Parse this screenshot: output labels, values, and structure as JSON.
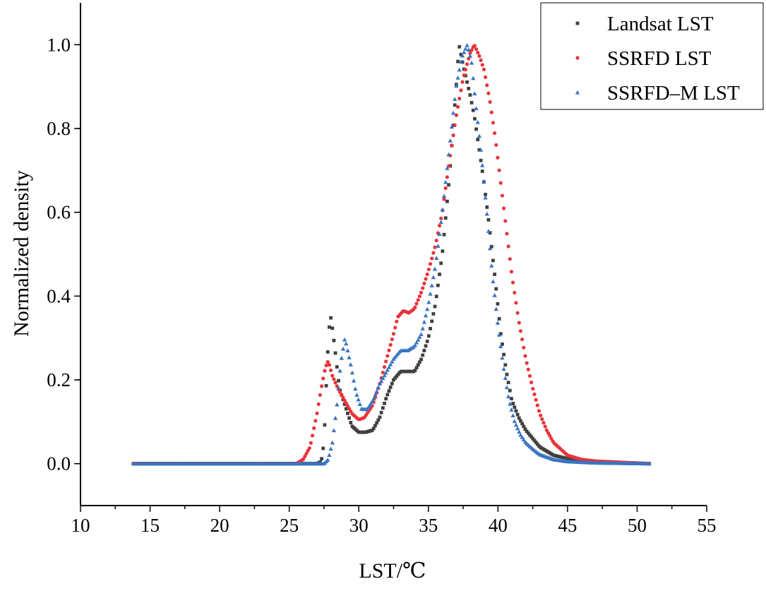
{
  "colors": {
    "landsat": "#404040",
    "ssrfd": "#e8333a",
    "ssrfd_m": "#3a74c2",
    "axis": "#000000",
    "background": "#ffffff"
  },
  "chart_data": {
    "type": "scatter",
    "title": "",
    "xlabel": "LST/℃",
    "ylabel": "Normalized density",
    "xlim": [
      10,
      55
    ],
    "ylim": [
      -0.1,
      1.1
    ],
    "x_ticks": [
      10,
      15,
      20,
      25,
      30,
      35,
      40,
      45,
      50,
      55
    ],
    "x_tick_labels": [
      "10",
      "15",
      "20",
      "25",
      "30",
      "35",
      "40",
      "45",
      "50",
      "55"
    ],
    "y_ticks": [
      0.0,
      0.2,
      0.4,
      0.6,
      0.8,
      1.0
    ],
    "y_tick_labels": [
      "0.0",
      "0.2",
      "0.4",
      "0.6",
      "0.8",
      "1.0"
    ],
    "grid": false,
    "legend_position": "top-right",
    "x_range_of_points": [
      13.8,
      50.9
    ],
    "series": [
      {
        "name": "Landsat LST",
        "marker": "square",
        "color": "#404040",
        "points": [
          [
            13.8,
            0
          ],
          [
            27,
            0
          ],
          [
            27.3,
            0.005
          ],
          [
            27.5,
            0.05
          ],
          [
            27.7,
            0.22
          ],
          [
            27.85,
            0.32
          ],
          [
            28,
            0.35
          ],
          [
            28.3,
            0.27
          ],
          [
            28.6,
            0.18
          ],
          [
            29,
            0.14
          ],
          [
            29.5,
            0.09
          ],
          [
            30,
            0.075
          ],
          [
            30.5,
            0.075
          ],
          [
            31,
            0.08
          ],
          [
            31.5,
            0.11
          ],
          [
            32,
            0.16
          ],
          [
            32.5,
            0.2
          ],
          [
            33,
            0.22
          ],
          [
            33.5,
            0.22
          ],
          [
            34,
            0.22
          ],
          [
            34.5,
            0.25
          ],
          [
            35,
            0.3
          ],
          [
            35.5,
            0.38
          ],
          [
            36,
            0.5
          ],
          [
            36.5,
            0.68
          ],
          [
            37,
            0.9
          ],
          [
            37.2,
            1.0
          ],
          [
            37.5,
            0.95
          ],
          [
            38,
            0.88
          ],
          [
            38.3,
            0.83
          ],
          [
            38.7,
            0.74
          ],
          [
            39,
            0.67
          ],
          [
            39.4,
            0.56
          ],
          [
            39.8,
            0.44
          ],
          [
            40.2,
            0.31
          ],
          [
            40.6,
            0.22
          ],
          [
            41,
            0.15
          ],
          [
            41.5,
            0.11
          ],
          [
            42,
            0.08
          ],
          [
            42.5,
            0.06
          ],
          [
            43,
            0.04
          ],
          [
            44,
            0.02
          ],
          [
            45,
            0.012
          ],
          [
            47,
            0.005
          ],
          [
            50.9,
            0
          ]
        ]
      },
      {
        "name": "SSRFD LST",
        "marker": "circle",
        "color": "#e8333a",
        "points": [
          [
            13.8,
            0
          ],
          [
            25.5,
            0
          ],
          [
            26,
            0.01
          ],
          [
            26.5,
            0.04
          ],
          [
            27,
            0.12
          ],
          [
            27.3,
            0.18
          ],
          [
            27.6,
            0.23
          ],
          [
            27.8,
            0.245
          ],
          [
            28.1,
            0.21
          ],
          [
            28.5,
            0.18
          ],
          [
            29,
            0.15
          ],
          [
            29.5,
            0.12
          ],
          [
            30,
            0.105
          ],
          [
            30.4,
            0.11
          ],
          [
            31,
            0.14
          ],
          [
            31.5,
            0.19
          ],
          [
            32,
            0.25
          ],
          [
            32.5,
            0.31
          ],
          [
            32.8,
            0.35
          ],
          [
            33.2,
            0.365
          ],
          [
            33.6,
            0.36
          ],
          [
            34,
            0.37
          ],
          [
            34.5,
            0.41
          ],
          [
            35,
            0.46
          ],
          [
            35.5,
            0.52
          ],
          [
            36,
            0.6
          ],
          [
            36.5,
            0.72
          ],
          [
            37,
            0.83
          ],
          [
            37.5,
            0.92
          ],
          [
            38,
            0.98
          ],
          [
            38.3,
            1.0
          ],
          [
            38.7,
            0.97
          ],
          [
            39,
            0.94
          ],
          [
            39.4,
            0.87
          ],
          [
            39.8,
            0.78
          ],
          [
            40.2,
            0.67
          ],
          [
            40.6,
            0.56
          ],
          [
            41,
            0.45
          ],
          [
            41.5,
            0.34
          ],
          [
            42,
            0.25
          ],
          [
            42.5,
            0.18
          ],
          [
            43,
            0.12
          ],
          [
            43.5,
            0.08
          ],
          [
            44,
            0.05
          ],
          [
            44.5,
            0.035
          ],
          [
            45,
            0.02
          ],
          [
            46,
            0.01
          ],
          [
            47,
            0.006
          ],
          [
            49,
            0.003
          ],
          [
            50.9,
            0
          ]
        ]
      },
      {
        "name": "SSRFD–M LST",
        "marker": "triangle",
        "color": "#3a74c2",
        "points": [
          [
            13.8,
            0
          ],
          [
            27.5,
            0
          ],
          [
            27.8,
            0.01
          ],
          [
            28.1,
            0.05
          ],
          [
            28.4,
            0.13
          ],
          [
            28.7,
            0.24
          ],
          [
            29,
            0.3
          ],
          [
            29.4,
            0.24
          ],
          [
            29.8,
            0.17
          ],
          [
            30.2,
            0.13
          ],
          [
            30.6,
            0.13
          ],
          [
            31,
            0.15
          ],
          [
            31.5,
            0.19
          ],
          [
            32,
            0.22
          ],
          [
            32.5,
            0.25
          ],
          [
            33,
            0.27
          ],
          [
            33.5,
            0.27
          ],
          [
            34,
            0.28
          ],
          [
            34.5,
            0.31
          ],
          [
            35,
            0.38
          ],
          [
            35.5,
            0.47
          ],
          [
            36,
            0.6
          ],
          [
            36.5,
            0.75
          ],
          [
            37,
            0.9
          ],
          [
            37.4,
            0.97
          ],
          [
            37.8,
            1.0
          ],
          [
            38.1,
            0.96
          ],
          [
            38.4,
            0.86
          ],
          [
            38.8,
            0.74
          ],
          [
            39.2,
            0.6
          ],
          [
            39.6,
            0.45
          ],
          [
            40,
            0.33
          ],
          [
            40.4,
            0.23
          ],
          [
            40.8,
            0.15
          ],
          [
            41.2,
            0.1
          ],
          [
            41.6,
            0.07
          ],
          [
            42,
            0.05
          ],
          [
            42.5,
            0.035
          ],
          [
            43,
            0.022
          ],
          [
            44,
            0.01
          ],
          [
            45,
            0.005
          ],
          [
            47,
            0.002
          ],
          [
            50.9,
            0
          ]
        ]
      }
    ]
  }
}
